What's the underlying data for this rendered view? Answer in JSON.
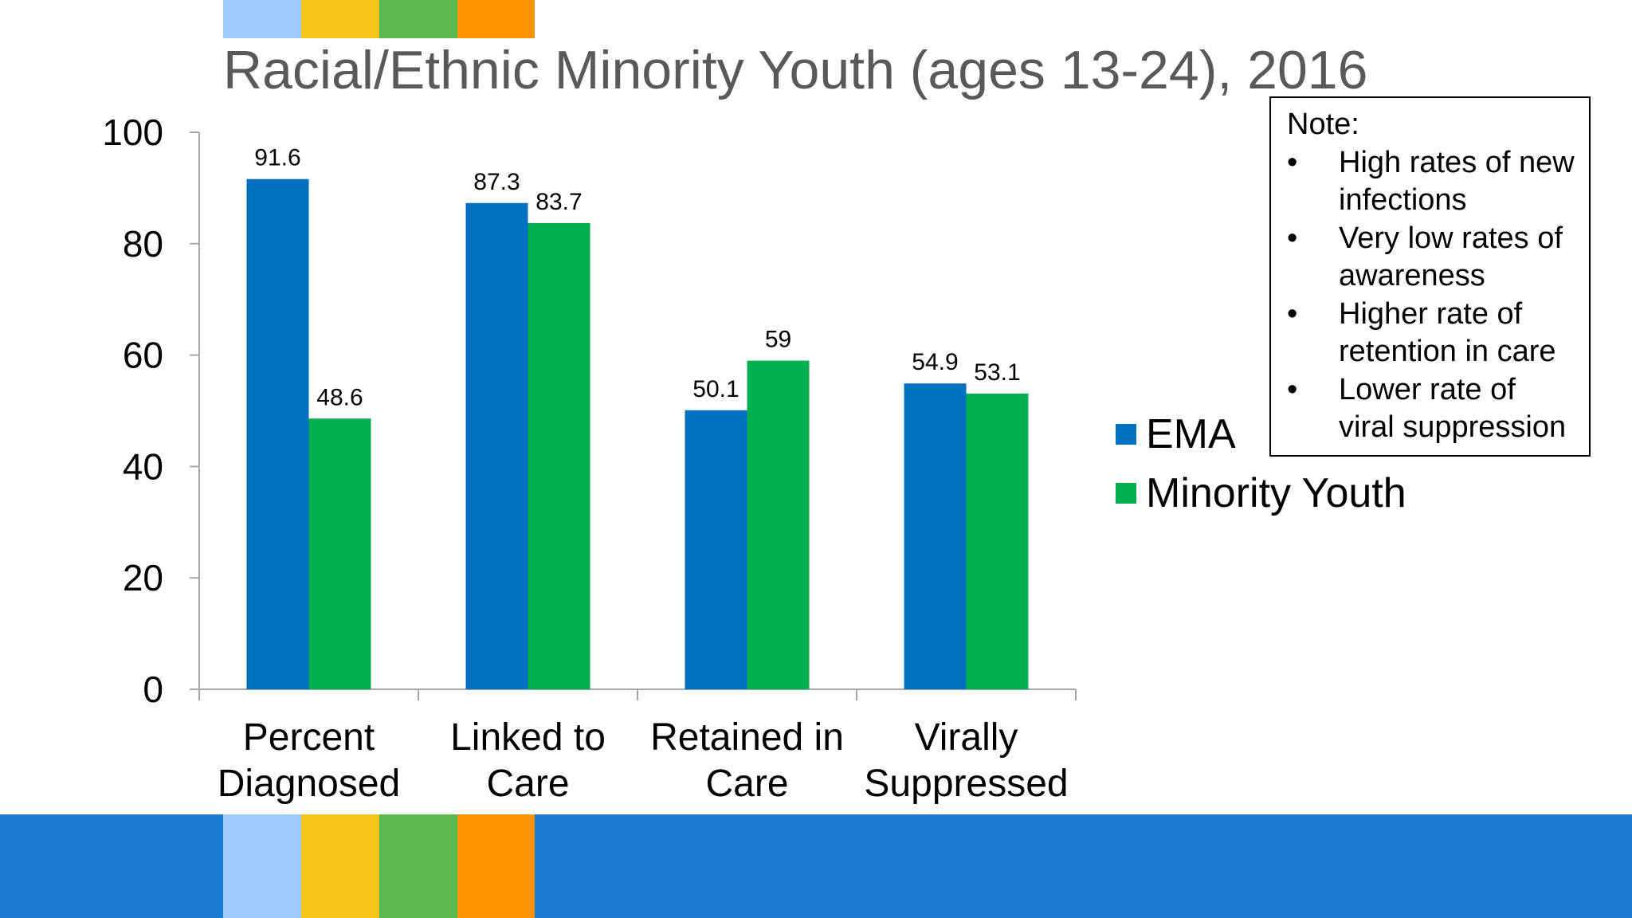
{
  "title": "Racial/Ethnic Minority Youth (ages 13-24), 2016",
  "colors": {
    "ema": "#0070c0",
    "minority_youth": "#00b050",
    "footer_blue": "#1b7bd4",
    "stripe_light_blue": "#9dcbff",
    "stripe_yellow": "#f5c518",
    "stripe_green": "#5aba4f",
    "stripe_orange": "#ff9400",
    "axis": "#a6a6a6",
    "title_gray": "#595959"
  },
  "note": {
    "title": "Note:",
    "bullet_icon": "bullet-icon",
    "items": [
      "High rates of new infections",
      "Very low rates of awareness",
      "Higher rate of retention in care",
      "Lower rate of viral suppression"
    ]
  },
  "chart_data": {
    "type": "bar",
    "categories": [
      "Percent Diagnosed",
      "Linked to Care",
      "Retained in Care",
      "Virally Suppressed"
    ],
    "series": [
      {
        "name": "EMA",
        "values": [
          91.6,
          87.3,
          50.1,
          54.9
        ]
      },
      {
        "name": "Minority Youth",
        "values": [
          48.6,
          83.7,
          59,
          53.1
        ]
      }
    ],
    "data_labels": [
      [
        "91.6",
        "87.3",
        "50.1",
        "54.9"
      ],
      [
        "48.6",
        "83.7",
        "59",
        "53.1"
      ]
    ],
    "ylim": [
      0,
      100
    ],
    "yticks": [
      0,
      20,
      40,
      60,
      80,
      100
    ],
    "category_label_lines": [
      [
        "Percent",
        "Diagnosed"
      ],
      [
        "Linked to",
        "Care"
      ],
      [
        "Retained in",
        "Care"
      ],
      [
        "Virally",
        "Suppressed"
      ]
    ],
    "grid": false,
    "legend_position": "right"
  }
}
